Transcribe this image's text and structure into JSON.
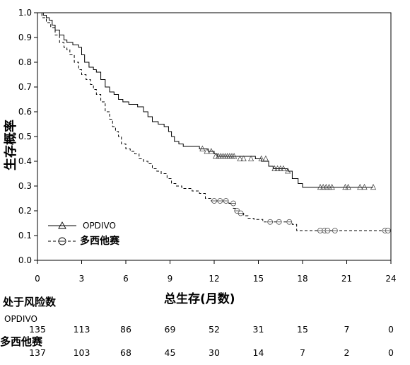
{
  "chart_data": {
    "type": "line",
    "title": "",
    "xlabel": "总生存(月数)",
    "ylabel": "生存概率",
    "xlim": [
      0,
      24
    ],
    "ylim": [
      0.0,
      1.0
    ],
    "xticks": [
      0,
      3,
      6,
      9,
      12,
      15,
      18,
      21,
      24
    ],
    "xtick_labels": [
      "0",
      "3",
      "6",
      "9",
      "12",
      "15",
      "18",
      "21",
      "24"
    ],
    "yticks": [
      0.0,
      0.1,
      0.2,
      0.3,
      0.4,
      0.5,
      0.6,
      0.7,
      0.8,
      0.9,
      1.0
    ],
    "ytick_labels": [
      "0.0",
      "0.1",
      "0.2",
      "0.3",
      "0.4",
      "0.5",
      "0.6",
      "0.7",
      "0.8",
      "0.9",
      "1.0"
    ],
    "grid": false,
    "legend_position": "bottom-left",
    "series": [
      {
        "name": "OPDIVO",
        "line_style": "solid",
        "marker": "triangle",
        "color": "#000000",
        "steps": [
          [
            0,
            1.0
          ],
          [
            0.4,
            0.99
          ],
          [
            0.6,
            0.98
          ],
          [
            0.8,
            0.97
          ],
          [
            1.0,
            0.95
          ],
          [
            1.2,
            0.93
          ],
          [
            1.5,
            0.91
          ],
          [
            1.8,
            0.89
          ],
          [
            2.0,
            0.88
          ],
          [
            2.4,
            0.87
          ],
          [
            2.8,
            0.86
          ],
          [
            3.0,
            0.83
          ],
          [
            3.2,
            0.8
          ],
          [
            3.5,
            0.78
          ],
          [
            3.8,
            0.77
          ],
          [
            4.0,
            0.76
          ],
          [
            4.3,
            0.73
          ],
          [
            4.6,
            0.7
          ],
          [
            4.9,
            0.68
          ],
          [
            5.2,
            0.67
          ],
          [
            5.5,
            0.65
          ],
          [
            5.8,
            0.64
          ],
          [
            6.2,
            0.63
          ],
          [
            6.8,
            0.62
          ],
          [
            7.2,
            0.6
          ],
          [
            7.5,
            0.58
          ],
          [
            7.8,
            0.56
          ],
          [
            8.2,
            0.55
          ],
          [
            8.6,
            0.54
          ],
          [
            8.9,
            0.52
          ],
          [
            9.1,
            0.5
          ],
          [
            9.3,
            0.48
          ],
          [
            9.6,
            0.47
          ],
          [
            9.9,
            0.46
          ],
          [
            11.0,
            0.45
          ],
          [
            11.6,
            0.44
          ],
          [
            12.0,
            0.43
          ],
          [
            12.2,
            0.42
          ],
          [
            14.8,
            0.41
          ],
          [
            15.2,
            0.4
          ],
          [
            15.7,
            0.38
          ],
          [
            16.0,
            0.37
          ],
          [
            17.0,
            0.36
          ],
          [
            17.3,
            0.33
          ],
          [
            17.7,
            0.31
          ],
          [
            18.0,
            0.295
          ]
        ],
        "end_x": 22.8,
        "censored": [
          [
            11.2,
            0.45
          ],
          [
            11.5,
            0.44
          ],
          [
            11.8,
            0.44
          ],
          [
            12.1,
            0.42
          ],
          [
            12.3,
            0.42
          ],
          [
            12.45,
            0.42
          ],
          [
            12.6,
            0.42
          ],
          [
            12.75,
            0.42
          ],
          [
            12.9,
            0.42
          ],
          [
            13.05,
            0.42
          ],
          [
            13.2,
            0.42
          ],
          [
            13.35,
            0.42
          ],
          [
            13.75,
            0.41
          ],
          [
            14.0,
            0.41
          ],
          [
            14.5,
            0.41
          ],
          [
            15.2,
            0.41
          ],
          [
            15.5,
            0.41
          ],
          [
            16.1,
            0.37
          ],
          [
            16.3,
            0.37
          ],
          [
            16.5,
            0.37
          ],
          [
            16.7,
            0.37
          ],
          [
            17.0,
            0.36
          ],
          [
            19.2,
            0.295
          ],
          [
            19.4,
            0.295
          ],
          [
            19.6,
            0.295
          ],
          [
            19.8,
            0.295
          ],
          [
            20.0,
            0.295
          ],
          [
            20.9,
            0.295
          ],
          [
            21.1,
            0.295
          ],
          [
            21.9,
            0.295
          ],
          [
            22.2,
            0.295
          ],
          [
            22.8,
            0.295
          ]
        ]
      },
      {
        "name": "多西他赛",
        "line_style": "dashed",
        "marker": "circle",
        "color": "#000000",
        "steps": [
          [
            0,
            1.0
          ],
          [
            0.3,
            0.98
          ],
          [
            0.6,
            0.96
          ],
          [
            0.9,
            0.94
          ],
          [
            1.2,
            0.91
          ],
          [
            1.5,
            0.88
          ],
          [
            1.8,
            0.86
          ],
          [
            2.0,
            0.85
          ],
          [
            2.2,
            0.83
          ],
          [
            2.5,
            0.8
          ],
          [
            2.8,
            0.77
          ],
          [
            3.0,
            0.75
          ],
          [
            3.3,
            0.73
          ],
          [
            3.6,
            0.71
          ],
          [
            3.8,
            0.69
          ],
          [
            4.0,
            0.67
          ],
          [
            4.3,
            0.64
          ],
          [
            4.6,
            0.6
          ],
          [
            4.9,
            0.57
          ],
          [
            5.1,
            0.54
          ],
          [
            5.3,
            0.52
          ],
          [
            5.5,
            0.5
          ],
          [
            5.7,
            0.47
          ],
          [
            6.0,
            0.45
          ],
          [
            6.3,
            0.44
          ],
          [
            6.6,
            0.43
          ],
          [
            6.9,
            0.41
          ],
          [
            7.2,
            0.4
          ],
          [
            7.5,
            0.39
          ],
          [
            7.8,
            0.37
          ],
          [
            8.1,
            0.36
          ],
          [
            8.4,
            0.35
          ],
          [
            8.8,
            0.33
          ],
          [
            9.1,
            0.31
          ],
          [
            9.4,
            0.3
          ],
          [
            9.8,
            0.29
          ],
          [
            10.5,
            0.28
          ],
          [
            11.0,
            0.27
          ],
          [
            11.4,
            0.25
          ],
          [
            11.8,
            0.24
          ],
          [
            13.0,
            0.23
          ],
          [
            13.3,
            0.21
          ],
          [
            13.5,
            0.2
          ],
          [
            13.7,
            0.19
          ],
          [
            14.0,
            0.18
          ],
          [
            14.3,
            0.17
          ],
          [
            14.7,
            0.165
          ],
          [
            15.3,
            0.155
          ],
          [
            17.3,
            0.145
          ],
          [
            17.6,
            0.12
          ]
        ],
        "end_x": 23.8,
        "censored": [
          [
            12.0,
            0.24
          ],
          [
            12.4,
            0.24
          ],
          [
            12.8,
            0.24
          ],
          [
            13.3,
            0.23
          ],
          [
            13.55,
            0.2
          ],
          [
            13.8,
            0.19
          ],
          [
            15.8,
            0.155
          ],
          [
            16.4,
            0.155
          ],
          [
            17.1,
            0.155
          ],
          [
            19.2,
            0.12
          ],
          [
            19.5,
            0.12
          ],
          [
            19.7,
            0.12
          ],
          [
            20.2,
            0.12
          ],
          [
            23.6,
            0.12
          ],
          [
            23.8,
            0.12
          ]
        ]
      }
    ],
    "risk_table": {
      "title": "处于风险数",
      "times": [
        0,
        3,
        6,
        9,
        12,
        15,
        18,
        21,
        24
      ],
      "rows": [
        {
          "label": "OPDIVO",
          "values": [
            "135",
            "113",
            "86",
            "69",
            "52",
            "31",
            "15",
            "7",
            "0"
          ]
        },
        {
          "label": "多西他赛",
          "values": [
            "137",
            "103",
            "68",
            "45",
            "30",
            "14",
            "7",
            "2",
            "0"
          ]
        }
      ]
    }
  }
}
